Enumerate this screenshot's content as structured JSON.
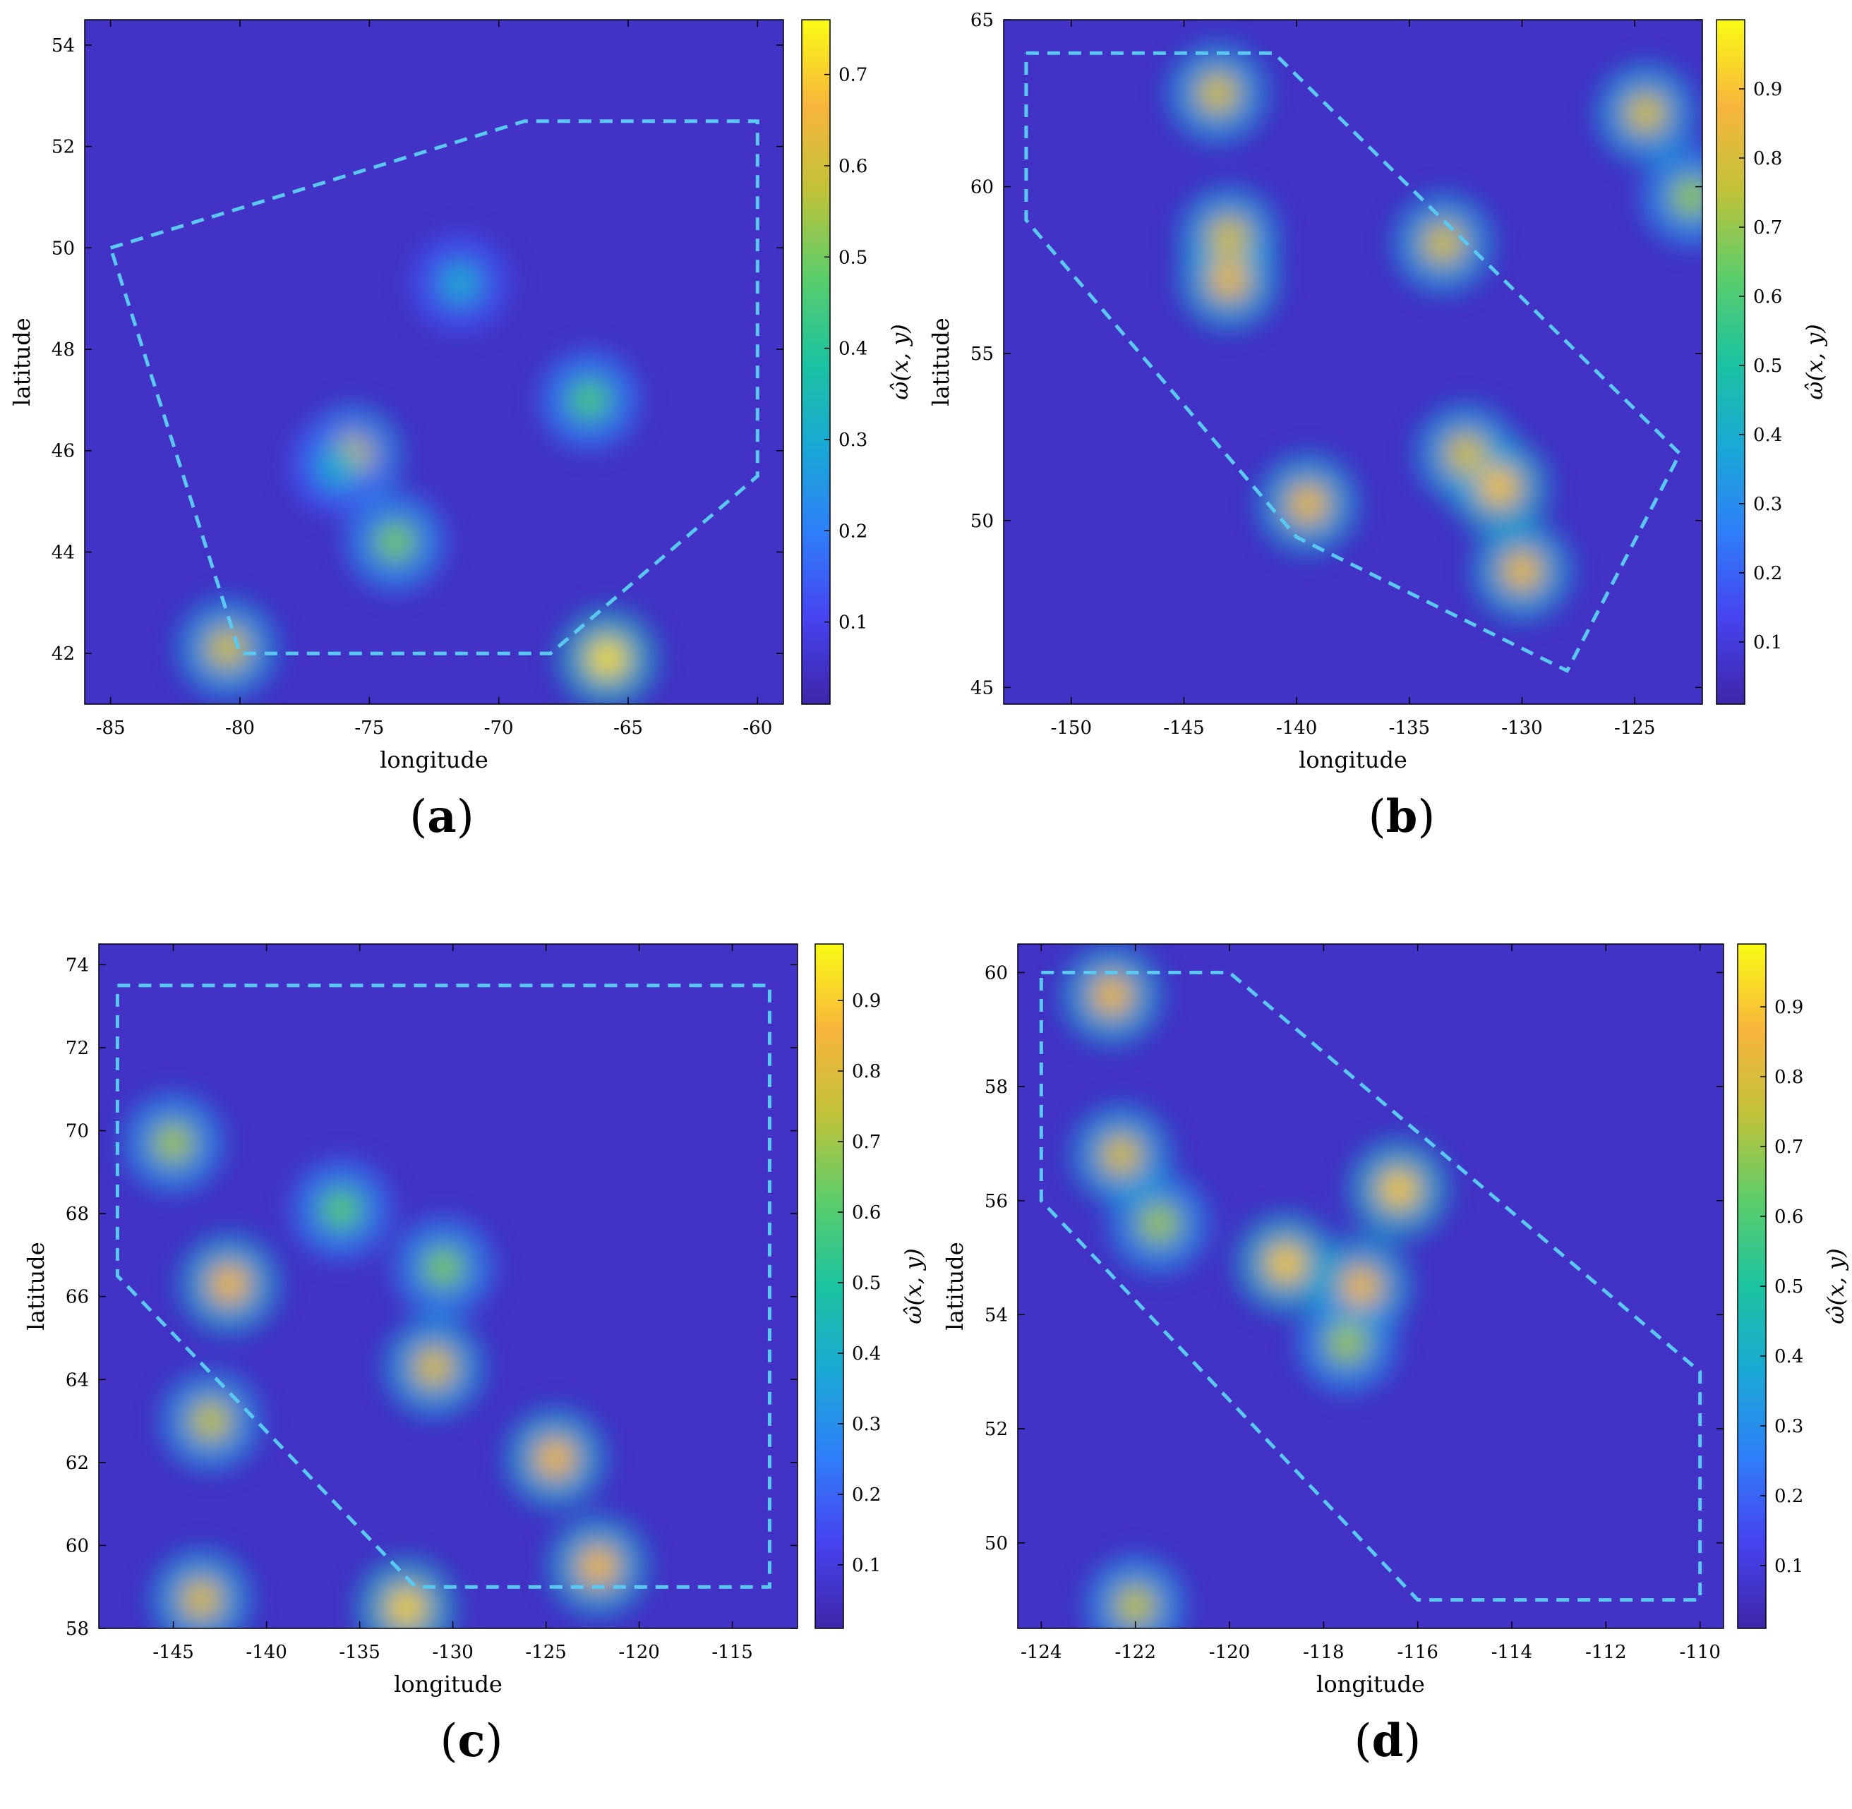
{
  "figure": {
    "colormap": [
      "#3e26a8",
      "#4743f0",
      "#2f7ef9",
      "#1aa8d6",
      "#1cc3a0",
      "#5ccd6a",
      "#c1c23a",
      "#f8b53d",
      "#f9fb15"
    ],
    "coastline_color": "#000000",
    "boundary_color": "#5bc8f0"
  },
  "chart_data": [
    {
      "type": "heatmap",
      "panel_label": "a",
      "xlabel": "longitude",
      "ylabel": "latitude",
      "colorbar_label": "ω̂(x, y)",
      "xlim": [
        -86,
        -59
      ],
      "ylim": [
        41,
        54.5
      ],
      "xticks": [
        -85,
        -80,
        -75,
        -70,
        -65,
        -60
      ],
      "yticks": [
        42,
        44,
        46,
        48,
        50,
        52,
        54
      ],
      "colorbar_range": [
        0.01,
        0.76
      ],
      "colorbar_ticks": [
        0.1,
        0.2,
        0.3,
        0.4,
        0.5,
        0.6,
        0.7
      ],
      "boundary": [
        [
          -85,
          50
        ],
        [
          -69,
          52.5
        ],
        [
          -60,
          52.5
        ],
        [
          -60,
          45.5
        ],
        [
          -68,
          42
        ],
        [
          -80,
          42
        ],
        [
          -85,
          50
        ]
      ],
      "hotspots": [
        {
          "lon": -65.8,
          "lat": 41.9,
          "value": 0.72
        },
        {
          "lon": -80.5,
          "lat": 42.1,
          "value": 0.6
        },
        {
          "lon": -66.5,
          "lat": 47.0,
          "value": 0.45
        },
        {
          "lon": -74.0,
          "lat": 44.2,
          "value": 0.5
        },
        {
          "lon": -75.7,
          "lat": 45.9,
          "value": 0.6
        },
        {
          "lon": -71.5,
          "lat": 49.3,
          "value": 0.3
        },
        {
          "lon": -76.2,
          "lat": 45.7,
          "value": 0.3
        }
      ]
    },
    {
      "type": "heatmap",
      "panel_label": "b",
      "xlabel": "longitude",
      "ylabel": "latitude",
      "colorbar_label": "ω̂(x, y)",
      "xlim": [
        -153,
        -122
      ],
      "ylim": [
        44.5,
        65
      ],
      "xticks": [
        -150,
        -145,
        -140,
        -135,
        -130,
        -125
      ],
      "yticks": [
        45,
        50,
        55,
        60,
        65
      ],
      "colorbar_range": [
        0.01,
        1.0
      ],
      "colorbar_ticks": [
        0.1,
        0.2,
        0.3,
        0.4,
        0.5,
        0.6,
        0.7,
        0.8,
        0.9
      ],
      "boundary": [
        [
          -152,
          64
        ],
        [
          -141,
          64
        ],
        [
          -123,
          52
        ],
        [
          -128,
          45.5
        ],
        [
          -140,
          49.5
        ],
        [
          -152,
          59
        ],
        [
          -152,
          64
        ]
      ],
      "hotspots": [
        {
          "lon": -143,
          "lat": 57.2,
          "value": 0.85
        },
        {
          "lon": -143,
          "lat": 58.5,
          "value": 0.8
        },
        {
          "lon": -139.5,
          "lat": 50.5,
          "value": 0.85
        },
        {
          "lon": -131,
          "lat": 51,
          "value": 0.9
        },
        {
          "lon": -130,
          "lat": 48.5,
          "value": 0.85
        },
        {
          "lon": -132.5,
          "lat": 52,
          "value": 0.8
        },
        {
          "lon": -143.5,
          "lat": 62.8,
          "value": 0.8
        },
        {
          "lon": -133.5,
          "lat": 58.3,
          "value": 0.8
        },
        {
          "lon": -124.5,
          "lat": 62.2,
          "value": 0.8
        },
        {
          "lon": -122.5,
          "lat": 59.7,
          "value": 0.7
        }
      ]
    },
    {
      "type": "heatmap",
      "panel_label": "c",
      "xlabel": "longitude",
      "ylabel": "latitude",
      "colorbar_label": "ω̂(x, y)",
      "xlim": [
        -149,
        -111.5
      ],
      "ylim": [
        58,
        74.5
      ],
      "xticks": [
        -145,
        -140,
        -135,
        -130,
        -125,
        -120,
        -115
      ],
      "yticks": [
        58,
        60,
        62,
        64,
        66,
        68,
        70,
        72,
        74
      ],
      "colorbar_range": [
        0.01,
        0.98
      ],
      "colorbar_ticks": [
        0.1,
        0.2,
        0.3,
        0.4,
        0.5,
        0.6,
        0.7,
        0.8,
        0.9
      ],
      "boundary": [
        [
          -148,
          73.5
        ],
        [
          -113,
          73.5
        ],
        [
          -113,
          59
        ],
        [
          -132,
          59
        ],
        [
          -148,
          66.5
        ],
        [
          -148,
          73.5
        ]
      ],
      "hotspots": [
        {
          "lon": -130.5,
          "lat": 66.7,
          "value": 0.65
        },
        {
          "lon": -145,
          "lat": 69.7,
          "value": 0.7
        },
        {
          "lon": -142,
          "lat": 66.3,
          "value": 0.85
        },
        {
          "lon": -124.5,
          "lat": 62.1,
          "value": 0.85
        },
        {
          "lon": -122.2,
          "lat": 59.5,
          "value": 0.85
        },
        {
          "lon": -131,
          "lat": 64.3,
          "value": 0.8
        },
        {
          "lon": -143,
          "lat": 63,
          "value": 0.75
        },
        {
          "lon": -132.5,
          "lat": 58.5,
          "value": 0.9
        },
        {
          "lon": -143.5,
          "lat": 58.7,
          "value": 0.8
        },
        {
          "lon": -136,
          "lat": 68.1,
          "value": 0.6
        }
      ]
    },
    {
      "type": "heatmap",
      "panel_label": "d",
      "xlabel": "longitude",
      "ylabel": "latitude",
      "colorbar_label": "ω̂(x, y)",
      "xlim": [
        -124.5,
        -109.5
      ],
      "ylim": [
        48.5,
        60.5
      ],
      "xticks": [
        -124,
        -122,
        -120,
        -118,
        -116,
        -114,
        -112,
        -110
      ],
      "yticks": [
        50,
        52,
        54,
        56,
        58,
        60
      ],
      "colorbar_range": [
        0.01,
        0.99
      ],
      "colorbar_ticks": [
        0.1,
        0.2,
        0.3,
        0.4,
        0.5,
        0.6,
        0.7,
        0.8,
        0.9
      ],
      "boundary": [
        [
          -124,
          60
        ],
        [
          -120,
          60
        ],
        [
          -110,
          53
        ],
        [
          -110,
          49
        ],
        [
          -116,
          49
        ],
        [
          -124,
          56
        ],
        [
          -124,
          60
        ]
      ],
      "hotspots": [
        {
          "lon": -122.5,
          "lat": 59.6,
          "value": 0.85
        },
        {
          "lon": -118.8,
          "lat": 54.9,
          "value": 0.9
        },
        {
          "lon": -117.2,
          "lat": 54.5,
          "value": 0.85
        },
        {
          "lon": -116.4,
          "lat": 56.2,
          "value": 0.9
        },
        {
          "lon": -121.5,
          "lat": 55.6,
          "value": 0.7
        },
        {
          "lon": -117.5,
          "lat": 53.5,
          "value": 0.7
        },
        {
          "lon": -122.3,
          "lat": 56.8,
          "value": 0.8
        },
        {
          "lon": -122.0,
          "lat": 48.9,
          "value": 0.75
        }
      ]
    }
  ]
}
